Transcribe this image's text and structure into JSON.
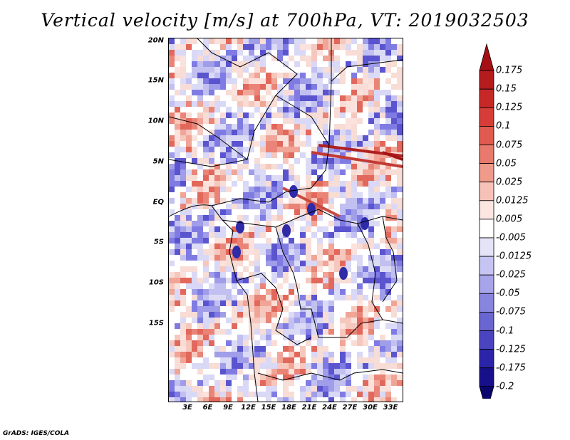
{
  "title": "Vertical velocity [m/s] at 700hPa, VT: 2019032503",
  "lat_labels": [
    "20N",
    "15N",
    "10N",
    "5N",
    "EQ",
    "5S",
    "10S",
    "15S"
  ],
  "lon_labels": [
    "3E",
    "6E",
    "9E",
    "12E",
    "15E",
    "18E",
    "21E",
    "24E",
    "27E",
    "30E",
    "33E"
  ],
  "colorbar": {
    "labels": [
      "0.175",
      "0.15",
      "0.125",
      "0.1",
      "0.075",
      "0.05",
      "0.025",
      "0.0125",
      "0.005",
      "-0.005",
      "-0.0125",
      "-0.025",
      "-0.05",
      "-0.075",
      "-0.1",
      "-0.125",
      "-0.175",
      "-0.2"
    ],
    "colors": [
      "#a50f15",
      "#b51c1e",
      "#c62828",
      "#d63c38",
      "#e05a4f",
      "#e77a6c",
      "#ef9a8b",
      "#f6c2b8",
      "#fbe6e1",
      "#ffffff",
      "#e4e3f8",
      "#c6c4f2",
      "#a7a4ea",
      "#8885df",
      "#6965d1",
      "#4a44c0",
      "#2b24a8",
      "#17108a",
      "#0b0570"
    ]
  },
  "footer": "GrADS: IGES/COLA"
}
